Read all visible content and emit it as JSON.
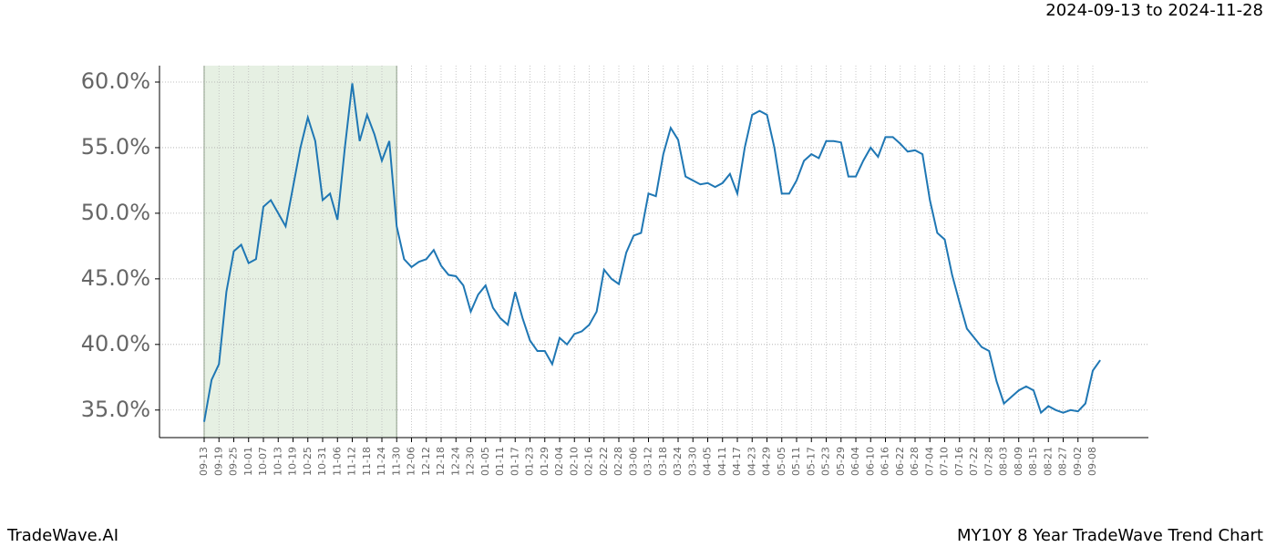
{
  "chart_data": {
    "type": "line",
    "title": "2024-09-13 to 2024-11-28",
    "footer_left": "TradeWave.AI",
    "footer_right": "MY10Y 8 Year TradeWave Trend Chart",
    "categories": [
      "09-13",
      null,
      "09-19",
      null,
      "09-25",
      null,
      "10-01",
      null,
      "10-07",
      null,
      "10-13",
      null,
      "10-19",
      null,
      "10-25",
      null,
      "10-31",
      null,
      "11-06",
      null,
      "11-12",
      null,
      "11-18",
      null,
      "11-24",
      null,
      "11-30",
      null,
      "12-06",
      null,
      "12-12",
      null,
      "12-18",
      null,
      "12-24",
      null,
      "12-30",
      null,
      "01-05",
      null,
      "01-11",
      null,
      "01-17",
      null,
      "01-23",
      null,
      "01-29",
      null,
      "02-04",
      null,
      "02-10",
      null,
      "02-16",
      null,
      "02-22",
      null,
      "02-28",
      null,
      "03-06",
      null,
      "03-12",
      null,
      "03-18",
      null,
      "03-24",
      null,
      "03-30",
      null,
      "04-05",
      null,
      "04-11",
      null,
      "04-17",
      null,
      "04-23",
      null,
      "04-29",
      null,
      "05-05",
      null,
      "05-11",
      null,
      "05-17",
      null,
      "05-23",
      null,
      "05-29",
      null,
      "06-04",
      null,
      "06-10",
      null,
      "06-16",
      null,
      "06-22",
      null,
      "06-28",
      null,
      "07-04",
      null,
      "07-10",
      null,
      "07-16",
      null,
      "07-22",
      null,
      "07-28",
      null,
      "08-03",
      null,
      "08-09",
      null,
      "08-15",
      null,
      "08-21",
      null,
      "08-27",
      null,
      "09-02",
      null,
      "09-08",
      null
    ],
    "series": [
      {
        "color": "#1f77b4",
        "values": [
          34.1,
          37.3,
          38.5,
          44,
          47.1,
          47.6,
          46.2,
          46.5,
          50.5,
          51,
          50,
          49,
          52,
          55,
          57.3,
          55.5,
          51,
          51.5,
          49.5,
          55,
          59.9,
          55.5,
          57.5,
          56,
          54,
          55.5,
          49,
          46.5,
          45.9,
          46.3,
          46.5,
          47.2,
          46,
          45.3,
          45.2,
          44.5,
          42.5,
          43.8,
          44.5,
          42.8,
          42,
          41.5,
          44,
          42,
          40.3,
          39.5,
          39.5,
          38.5,
          40.5,
          40,
          40.8,
          41,
          41.5,
          42.5,
          45.7,
          45,
          44.6,
          47,
          48.3,
          48.5,
          51.5,
          51.3,
          54.5,
          56.5,
          55.6,
          52.8,
          52.5,
          52.2,
          52.3,
          52,
          52.3,
          53,
          51.5,
          55,
          57.5,
          57.8,
          57.5,
          55,
          51.5,
          51.5,
          52.5,
          54,
          54.5,
          54.2,
          55.5,
          55.5,
          55.4,
          52.8,
          52.8,
          54,
          55,
          54.3,
          55.8,
          55.8,
          55.3,
          54.7,
          54.8,
          54.5,
          51,
          48.5,
          48,
          45.3,
          43.2,
          41.2,
          40.5,
          39.8,
          39.5,
          37.2,
          35.5,
          36,
          36.5,
          36.8,
          36.5,
          34.8,
          35.3,
          35,
          34.8,
          35,
          34.9,
          35.5,
          38,
          38.8
        ]
      }
    ],
    "highlight": {
      "start": "09-13",
      "end": "11-30",
      "color": "#e6f0e3"
    },
    "ylim": [
      32.9,
      61.25
    ],
    "yticks": [
      {
        "value": 35,
        "label": "35.0%"
      },
      {
        "value": 40,
        "label": "40.0%"
      },
      {
        "value": 45,
        "label": "45.0%"
      },
      {
        "value": 50,
        "label": "50.0%"
      },
      {
        "value": 55,
        "label": "55.0%"
      },
      {
        "value": 60,
        "label": "60.0%"
      }
    ],
    "grid": true
  }
}
